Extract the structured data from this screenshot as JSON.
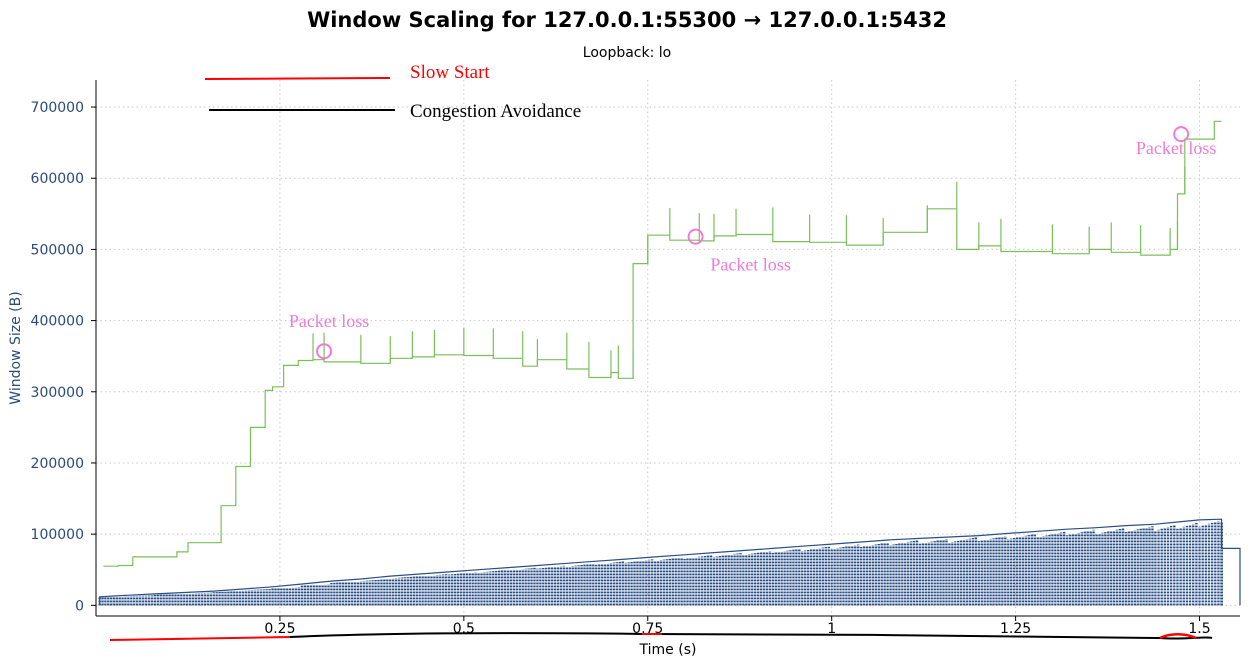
{
  "chart_data": {
    "type": "line",
    "title": "Window Scaling for 127.0.0.1:55300 → 127.0.0.1:5432",
    "subtitle": "Loopback: lo",
    "xlabel": "Time (s)",
    "ylabel": "Window Size (B)",
    "xlim": [
      0.0,
      1.555
    ],
    "ylim": [
      -15000,
      738000
    ],
    "x_ticks": [
      "0.25",
      "0.5",
      "0.75",
      "1",
      "1.25",
      "1.5"
    ],
    "x_tick_values": [
      0.25,
      0.5,
      0.75,
      1.0,
      1.25,
      1.5
    ],
    "y_ticks": [
      "0",
      "100000",
      "200000",
      "300000",
      "400000",
      "500000",
      "600000",
      "700000"
    ],
    "y_tick_values": [
      0,
      100000,
      200000,
      300000,
      400000,
      500000,
      600000,
      700000
    ],
    "grid": true,
    "legend": [
      {
        "label": "Slow  Start",
        "color": "#ff0000"
      },
      {
        "label": "Congestion  Avoidance",
        "color": "#000000"
      }
    ],
    "series": [
      {
        "style": "step",
        "color": "#7cbf5a",
        "points": [
          [
            0.01,
            55000
          ],
          [
            0.03,
            55000
          ],
          [
            0.03,
            56000
          ],
          [
            0.05,
            56000
          ],
          [
            0.05,
            68000
          ],
          [
            0.075,
            68000
          ],
          [
            0.075,
            68000
          ],
          [
            0.11,
            68000
          ],
          [
            0.11,
            75000
          ],
          [
            0.125,
            75000
          ],
          [
            0.125,
            88000
          ],
          [
            0.16,
            88000
          ],
          [
            0.16,
            88000
          ],
          [
            0.17,
            88000
          ],
          [
            0.17,
            140000
          ],
          [
            0.19,
            140000
          ],
          [
            0.19,
            195000
          ],
          [
            0.21,
            195000
          ],
          [
            0.21,
            250000
          ],
          [
            0.23,
            250000
          ],
          [
            0.23,
            302000
          ],
          [
            0.24,
            302000
          ],
          [
            0.24,
            307000
          ],
          [
            0.255,
            307000
          ],
          [
            0.255,
            337000
          ],
          [
            0.275,
            337000
          ],
          [
            0.275,
            344000
          ],
          [
            0.295,
            344000
          ],
          [
            0.295,
            345000
          ],
          [
            0.31,
            345000
          ],
          [
            0.31,
            342000
          ],
          [
            0.36,
            342000
          ],
          [
            0.36,
            340000
          ],
          [
            0.4,
            340000
          ],
          [
            0.4,
            347000
          ],
          [
            0.43,
            347000
          ],
          [
            0.43,
            349000
          ],
          [
            0.46,
            349000
          ],
          [
            0.46,
            352000
          ],
          [
            0.5,
            352000
          ],
          [
            0.5,
            351000
          ],
          [
            0.54,
            351000
          ],
          [
            0.54,
            347000
          ],
          [
            0.58,
            347000
          ],
          [
            0.58,
            336000
          ],
          [
            0.6,
            336000
          ],
          [
            0.6,
            345000
          ],
          [
            0.64,
            345000
          ],
          [
            0.64,
            332000
          ],
          [
            0.67,
            332000
          ],
          [
            0.67,
            320000
          ],
          [
            0.7,
            320000
          ],
          [
            0.7,
            327000
          ],
          [
            0.71,
            327000
          ],
          [
            0.71,
            319000
          ],
          [
            0.73,
            319000
          ],
          [
            0.73,
            480000
          ],
          [
            0.75,
            480000
          ],
          [
            0.75,
            520000
          ],
          [
            0.78,
            520000
          ],
          [
            0.78,
            513000
          ],
          [
            0.82,
            513000
          ],
          [
            0.82,
            512000
          ],
          [
            0.84,
            512000
          ],
          [
            0.84,
            519000
          ],
          [
            0.87,
            519000
          ],
          [
            0.87,
            521000
          ],
          [
            0.92,
            521000
          ],
          [
            0.92,
            511000
          ],
          [
            0.97,
            511000
          ],
          [
            0.97,
            510000
          ],
          [
            1.02,
            510000
          ],
          [
            1.02,
            506000
          ],
          [
            1.07,
            506000
          ],
          [
            1.07,
            524000
          ],
          [
            1.13,
            524000
          ],
          [
            1.13,
            557000
          ],
          [
            1.17,
            557000
          ],
          [
            1.17,
            500000
          ],
          [
            1.2,
            500000
          ],
          [
            1.2,
            505000
          ],
          [
            1.23,
            505000
          ],
          [
            1.23,
            497000
          ],
          [
            1.3,
            497000
          ],
          [
            1.3,
            494000
          ],
          [
            1.35,
            494000
          ],
          [
            1.35,
            500000
          ],
          [
            1.38,
            500000
          ],
          [
            1.38,
            496000
          ],
          [
            1.42,
            496000
          ],
          [
            1.42,
            492000
          ],
          [
            1.46,
            492000
          ],
          [
            1.46,
            500000
          ],
          [
            1.47,
            500000
          ],
          [
            1.47,
            578000
          ],
          [
            1.48,
            578000
          ],
          [
            1.48,
            655000
          ],
          [
            1.52,
            655000
          ],
          [
            1.52,
            680000
          ],
          [
            1.53,
            680000
          ]
        ]
      },
      {
        "style": "step-dots",
        "color": "#2a4f86",
        "points": [
          [
            0.005,
            0
          ],
          [
            0.005,
            12000
          ],
          [
            0.04,
            14000
          ],
          [
            0.08,
            16000
          ],
          [
            0.12,
            18000
          ],
          [
            0.16,
            20000
          ],
          [
            0.2,
            23000
          ],
          [
            0.24,
            26000
          ],
          [
            0.28,
            30000
          ],
          [
            0.32,
            34000
          ],
          [
            0.36,
            37000
          ],
          [
            0.4,
            41000
          ],
          [
            0.44,
            44000
          ],
          [
            0.48,
            47000
          ],
          [
            0.52,
            50000
          ],
          [
            0.56,
            53000
          ],
          [
            0.6,
            56000
          ],
          [
            0.64,
            59000
          ],
          [
            0.68,
            62000
          ],
          [
            0.72,
            65000
          ],
          [
            0.76,
            68000
          ],
          [
            0.8,
            71000
          ],
          [
            0.84,
            74000
          ],
          [
            0.88,
            77000
          ],
          [
            0.92,
            80000
          ],
          [
            0.96,
            83000
          ],
          [
            1.0,
            86000
          ],
          [
            1.04,
            89000
          ],
          [
            1.08,
            92000
          ],
          [
            1.12,
            94000
          ],
          [
            1.16,
            96000
          ],
          [
            1.2,
            98000
          ],
          [
            1.24,
            101000
          ],
          [
            1.28,
            104000
          ],
          [
            1.32,
            107000
          ],
          [
            1.36,
            109000
          ],
          [
            1.4,
            112000
          ],
          [
            1.44,
            114000
          ],
          [
            1.47,
            117000
          ],
          [
            1.5,
            120000
          ],
          [
            1.53,
            121000
          ],
          [
            1.53,
            80000
          ],
          [
            1.555,
            80000
          ],
          [
            1.555,
            0
          ]
        ]
      }
    ],
    "annotations": [
      {
        "text": "Packet  loss",
        "x": 0.31,
        "y": 357000
      },
      {
        "text": "Packet  loss",
        "x": 0.815,
        "y": 518000
      },
      {
        "text": "Packet  loss",
        "x": 1.475,
        "y": 662000
      }
    ]
  }
}
